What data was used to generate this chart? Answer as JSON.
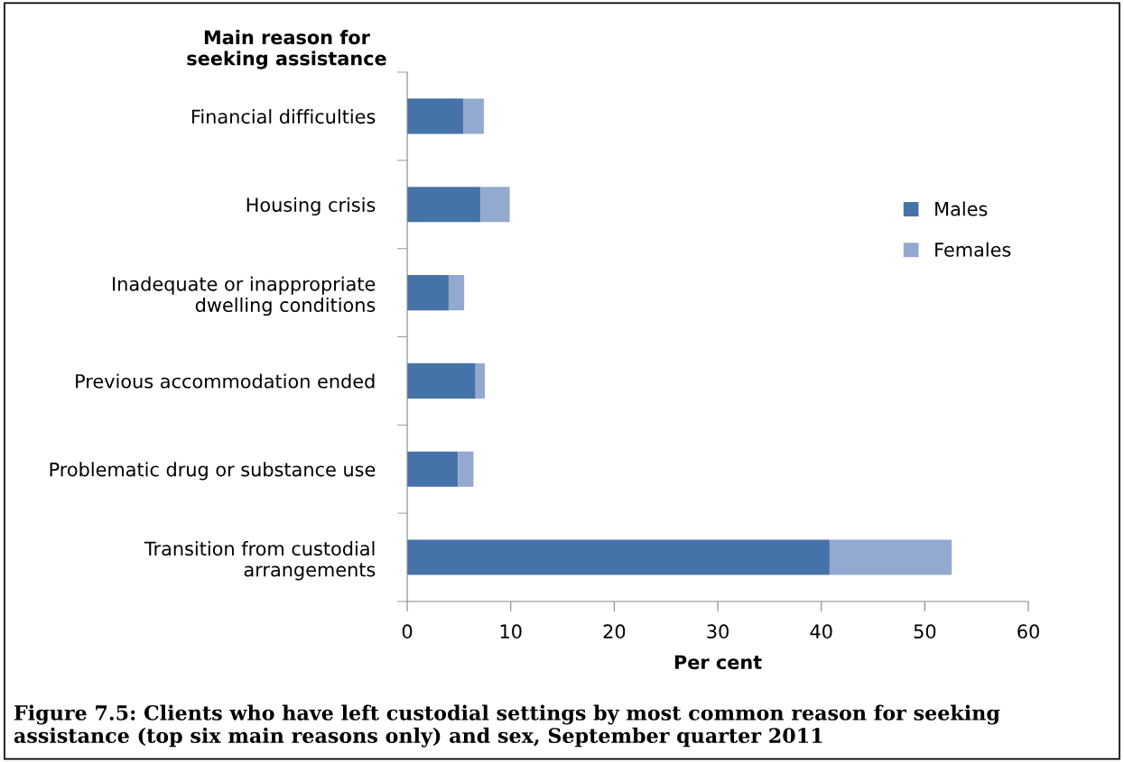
{
  "chart_data": {
    "type": "bar",
    "orientation": "horizontal",
    "stacked": true,
    "title": "Figure 7.5: Clients who have left custodial settings by most common reason for seeking assistance (top six main reasons only) and sex, September quarter 2011",
    "ylabel": "Main reason for\nseeking assistance",
    "xlabel": "Per cent",
    "categories": [
      "Financial difficulties",
      "Housing crisis",
      "Inadequate or inappropriate\ndwelling conditions",
      "Previous accommodation ended",
      "Problematic drug or substance use",
      "Transition from custodial\narrangements"
    ],
    "series": [
      {
        "name": "Males",
        "color": "#4573a7",
        "values": [
          5.4,
          7.1,
          4.0,
          6.6,
          4.9,
          40.8
        ]
      },
      {
        "name": "Females",
        "color": "#94a9cf",
        "values": [
          2.0,
          2.8,
          1.5,
          0.9,
          1.5,
          11.8
        ]
      }
    ],
    "xlim": [
      0,
      60
    ],
    "xticks": [
      0,
      10,
      20,
      30,
      40,
      50,
      60
    ],
    "grid": false,
    "legend": "right"
  }
}
